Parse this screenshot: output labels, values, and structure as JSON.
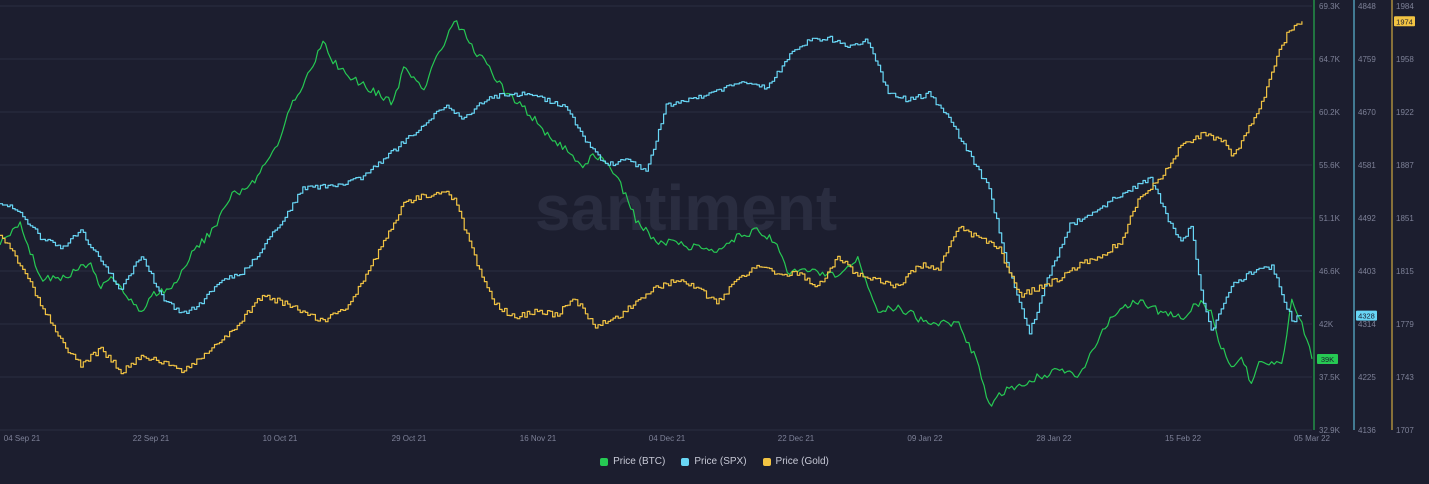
{
  "chart_data": {
    "type": "line",
    "watermark": "santiment",
    "x_labels": [
      "04 Sep 21",
      "22 Sep 21",
      "10 Oct 21",
      "29 Oct 21",
      "16 Nov 21",
      "04 Dec 21",
      "22 Dec 21",
      "09 Jan 22",
      "28 Jan 22",
      "15 Feb 22",
      "05 Mar 22"
    ],
    "axes": {
      "btc": {
        "ticks": [
          "69.3K",
          "64.7K",
          "60.2K",
          "55.6K",
          "51.1K",
          "46.6K",
          "42K",
          "37.5K",
          "32.9K"
        ],
        "range": [
          32900,
          69300
        ],
        "current": "39K"
      },
      "spx": {
        "ticks": [
          "4848",
          "4759",
          "4670",
          "4581",
          "4492",
          "4403",
          "4314",
          "4225",
          "4136"
        ],
        "range": [
          4136,
          4848
        ],
        "current": "4328"
      },
      "gold": {
        "ticks": [
          "1984",
          "1958",
          "1922",
          "1887",
          "1851",
          "1815",
          "1779",
          "1743",
          "1707"
        ],
        "range": [
          1707,
          1984
        ],
        "current": "1974"
      }
    },
    "series": [
      {
        "name": "Price (BTC)",
        "axis": "btc",
        "color": "#26c953",
        "values": [
          [
            0,
            49000
          ],
          [
            4,
            50500
          ],
          [
            8,
            46000
          ],
          [
            12,
            45800
          ],
          [
            15,
            46500
          ],
          [
            18,
            47400
          ],
          [
            20,
            45000
          ],
          [
            22,
            46000
          ],
          [
            26,
            44000
          ],
          [
            28,
            43000
          ],
          [
            30,
            44500
          ],
          [
            34,
            45000
          ],
          [
            38,
            48000
          ],
          [
            42,
            50000
          ],
          [
            46,
            53000
          ],
          [
            50,
            54000
          ],
          [
            54,
            56500
          ],
          [
            58,
            61000
          ],
          [
            62,
            64000
          ],
          [
            64,
            66500
          ],
          [
            66,
            64500
          ],
          [
            70,
            63000
          ],
          [
            74,
            62000
          ],
          [
            78,
            61000
          ],
          [
            80,
            64000
          ],
          [
            82,
            63000
          ],
          [
            84,
            62000
          ],
          [
            86,
            64500
          ],
          [
            88,
            66000
          ],
          [
            90,
            68000
          ],
          [
            92,
            67000
          ],
          [
            94,
            65500
          ],
          [
            96,
            64500
          ],
          [
            100,
            62000
          ],
          [
            104,
            60500
          ],
          [
            108,
            58500
          ],
          [
            112,
            57000
          ],
          [
            115,
            55500
          ],
          [
            118,
            56500
          ],
          [
            122,
            55000
          ],
          [
            126,
            51000
          ],
          [
            130,
            49000
          ],
          [
            134,
            49000
          ],
          [
            138,
            48500
          ],
          [
            142,
            48000
          ],
          [
            146,
            49500
          ],
          [
            150,
            50000
          ],
          [
            154,
            49000
          ],
          [
            156,
            46500
          ],
          [
            158,
            46500
          ],
          [
            162,
            46500
          ],
          [
            166,
            46000
          ],
          [
            170,
            47500
          ],
          [
            174,
            43000
          ],
          [
            178,
            43500
          ],
          [
            182,
            42500
          ],
          [
            186,
            42000
          ],
          [
            190,
            42000
          ],
          [
            194,
            38500
          ],
          [
            196,
            35000
          ],
          [
            198,
            36000
          ],
          [
            202,
            36700
          ],
          [
            206,
            37500
          ],
          [
            210,
            38000
          ],
          [
            214,
            37500
          ],
          [
            218,
            41000
          ],
          [
            222,
            43500
          ],
          [
            226,
            44000
          ],
          [
            230,
            43000
          ],
          [
            234,
            42500
          ],
          [
            238,
            44000
          ],
          [
            240,
            43000
          ],
          [
            242,
            40000
          ],
          [
            244,
            38500
          ],
          [
            246,
            39000
          ],
          [
            248,
            37000
          ],
          [
            250,
            39000
          ],
          [
            254,
            38500
          ],
          [
            256,
            44000
          ],
          [
            258,
            42000
          ],
          [
            260,
            39000
          ]
        ]
      },
      {
        "name": "Price (SPX)",
        "axis": "spx",
        "color": "#68d6f5",
        "values": [
          [
            0,
            4520
          ],
          [
            4,
            4500
          ],
          [
            8,
            4460
          ],
          [
            12,
            4440
          ],
          [
            16,
            4470
          ],
          [
            20,
            4420
          ],
          [
            24,
            4370
          ],
          [
            28,
            4430
          ],
          [
            32,
            4360
          ],
          [
            36,
            4330
          ],
          [
            40,
            4350
          ],
          [
            44,
            4390
          ],
          [
            48,
            4400
          ],
          [
            52,
            4440
          ],
          [
            56,
            4490
          ],
          [
            60,
            4540
          ],
          [
            64,
            4545
          ],
          [
            68,
            4550
          ],
          [
            72,
            4560
          ],
          [
            76,
            4590
          ],
          [
            80,
            4620
          ],
          [
            84,
            4650
          ],
          [
            88,
            4680
          ],
          [
            92,
            4660
          ],
          [
            96,
            4690
          ],
          [
            100,
            4700
          ],
          [
            104,
            4700
          ],
          [
            108,
            4690
          ],
          [
            112,
            4680
          ],
          [
            116,
            4620
          ],
          [
            120,
            4580
          ],
          [
            124,
            4590
          ],
          [
            128,
            4570
          ],
          [
            132,
            4680
          ],
          [
            136,
            4690
          ],
          [
            140,
            4700
          ],
          [
            144,
            4710
          ],
          [
            148,
            4720
          ],
          [
            152,
            4710
          ],
          [
            156,
            4760
          ],
          [
            160,
            4790
          ],
          [
            164,
            4795
          ],
          [
            168,
            4780
          ],
          [
            172,
            4790
          ],
          [
            176,
            4700
          ],
          [
            180,
            4690
          ],
          [
            184,
            4700
          ],
          [
            188,
            4660
          ],
          [
            192,
            4600
          ],
          [
            196,
            4540
          ],
          [
            200,
            4400
          ],
          [
            204,
            4300
          ],
          [
            208,
            4400
          ],
          [
            212,
            4480
          ],
          [
            216,
            4500
          ],
          [
            220,
            4520
          ],
          [
            224,
            4540
          ],
          [
            228,
            4560
          ],
          [
            232,
            4480
          ],
          [
            234,
            4450
          ],
          [
            236,
            4480
          ],
          [
            238,
            4370
          ],
          [
            240,
            4300
          ],
          [
            244,
            4380
          ],
          [
            248,
            4400
          ],
          [
            252,
            4410
          ],
          [
            256,
            4320
          ],
          [
            258,
            4328
          ]
        ]
      },
      {
        "name": "Price (Gold)",
        "axis": "gold",
        "color": "#f2c443",
        "values": [
          [
            0,
            1835
          ],
          [
            4,
            1815
          ],
          [
            8,
            1790
          ],
          [
            12,
            1765
          ],
          [
            16,
            1750
          ],
          [
            20,
            1760
          ],
          [
            24,
            1745
          ],
          [
            28,
            1755
          ],
          [
            32,
            1752
          ],
          [
            36,
            1745
          ],
          [
            40,
            1755
          ],
          [
            44,
            1765
          ],
          [
            48,
            1780
          ],
          [
            52,
            1795
          ],
          [
            56,
            1790
          ],
          [
            60,
            1785
          ],
          [
            64,
            1778
          ],
          [
            68,
            1785
          ],
          [
            72,
            1805
          ],
          [
            76,
            1830
          ],
          [
            80,
            1855
          ],
          [
            84,
            1860
          ],
          [
            88,
            1862
          ],
          [
            90,
            1858
          ],
          [
            94,
            1820
          ],
          [
            98,
            1790
          ],
          [
            102,
            1780
          ],
          [
            106,
            1785
          ],
          [
            110,
            1782
          ],
          [
            114,
            1792
          ],
          [
            118,
            1775
          ],
          [
            122,
            1780
          ],
          [
            126,
            1790
          ],
          [
            130,
            1800
          ],
          [
            134,
            1805
          ],
          [
            138,
            1800
          ],
          [
            142,
            1790
          ],
          [
            146,
            1805
          ],
          [
            150,
            1815
          ],
          [
            154,
            1808
          ],
          [
            158,
            1810
          ],
          [
            162,
            1800
          ],
          [
            166,
            1820
          ],
          [
            170,
            1808
          ],
          [
            174,
            1805
          ],
          [
            178,
            1800
          ],
          [
            182,
            1815
          ],
          [
            186,
            1812
          ],
          [
            190,
            1840
          ],
          [
            194,
            1832
          ],
          [
            198,
            1825
          ],
          [
            202,
            1795
          ],
          [
            206,
            1800
          ],
          [
            210,
            1806
          ],
          [
            214,
            1815
          ],
          [
            218,
            1820
          ],
          [
            222,
            1830
          ],
          [
            226,
            1860
          ],
          [
            230,
            1872
          ],
          [
            234,
            1893
          ],
          [
            238,
            1900
          ],
          [
            242,
            1897
          ],
          [
            244,
            1887
          ],
          [
            246,
            1895
          ],
          [
            250,
            1920
          ],
          [
            253,
            1950
          ],
          [
            255,
            1965
          ],
          [
            258,
            1974
          ]
        ]
      }
    ]
  },
  "legend": {
    "btc": "Price (BTC)",
    "spx": "Price (SPX)",
    "gold": "Price (Gold)"
  },
  "colors": {
    "background": "#1c1e2f",
    "grid": "#2a2d41",
    "btc": "#26c953",
    "spx": "#68d6f5",
    "gold": "#f2c443",
    "axis_text": "#7d8197"
  }
}
